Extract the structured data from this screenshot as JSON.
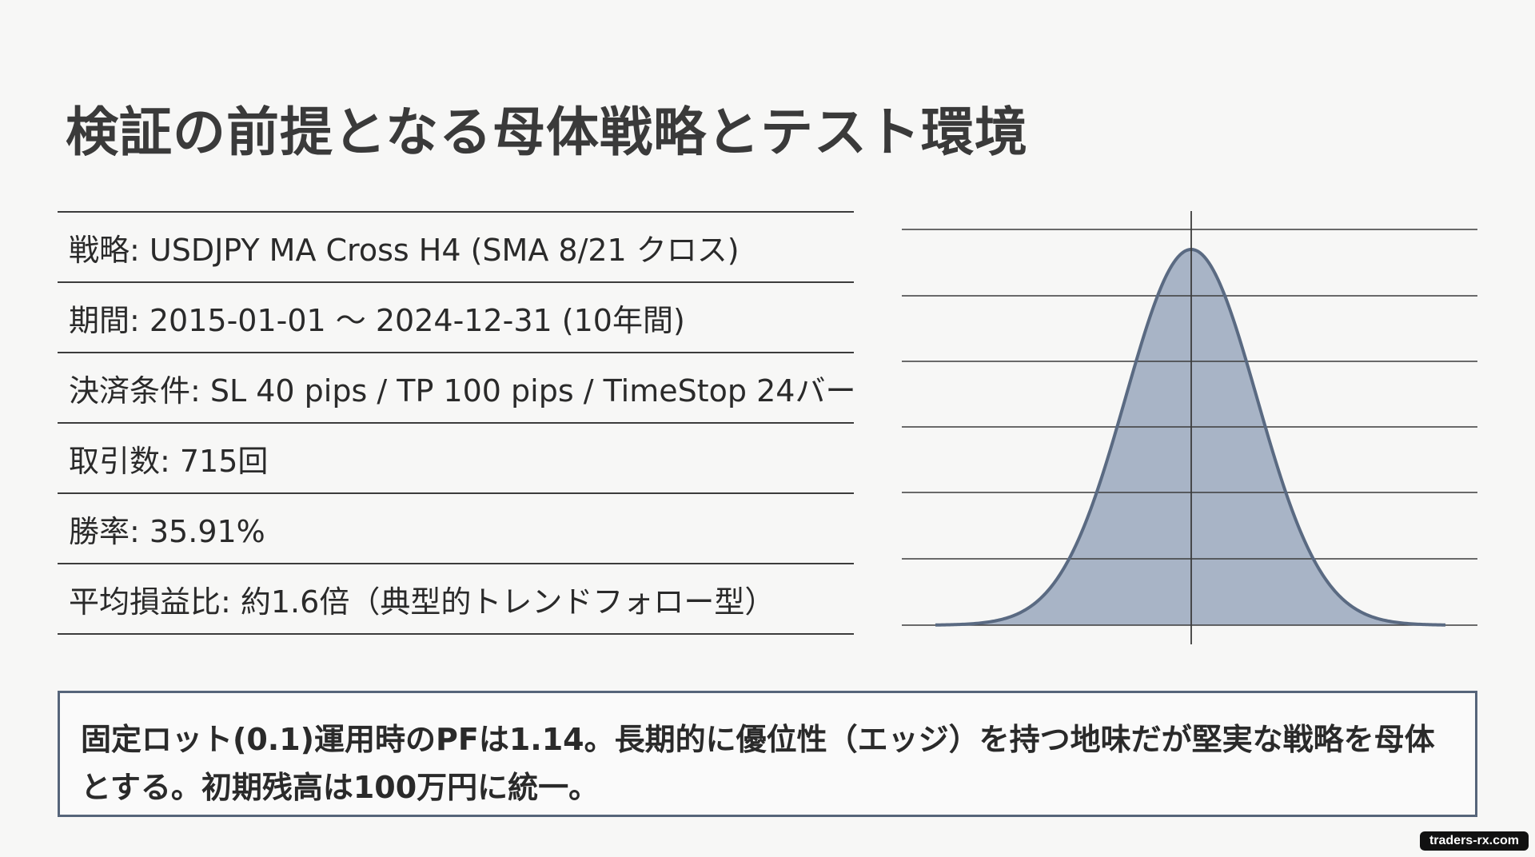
{
  "title": "検証の前提となる母体戦略とテスト環境",
  "specs": [
    {
      "text": "戦略: USDJPY MA Cross H4 (SMA 8/21 クロス)"
    },
    {
      "text": "期間: 2015-01-01 ～ 2024-12-31 (10年間)"
    },
    {
      "text": "決済条件: SL 40 pips / TP 100 pips / TimeStop 24バー"
    },
    {
      "text": "取引数: 715回"
    },
    {
      "text": "勝率: 35.91%"
    },
    {
      "text": "平均損益比: 約1.6倍（典型的トレンドフォロー型）"
    }
  ],
  "summary": {
    "line1": "固定ロット(0.1)運用時のPFは1.14。長期的に優位性（エッジ）を持つ地味だが堅実な戦略を母体",
    "line2": "とする。初期残高は100万円に統一。"
  },
  "figure": {
    "shape": "normal-distribution",
    "fill_color": "#a8b4c6",
    "stroke_color": "#5a6a82",
    "grid_color": "#3c3c3c"
  },
  "watermark": "traders-rx.com"
}
